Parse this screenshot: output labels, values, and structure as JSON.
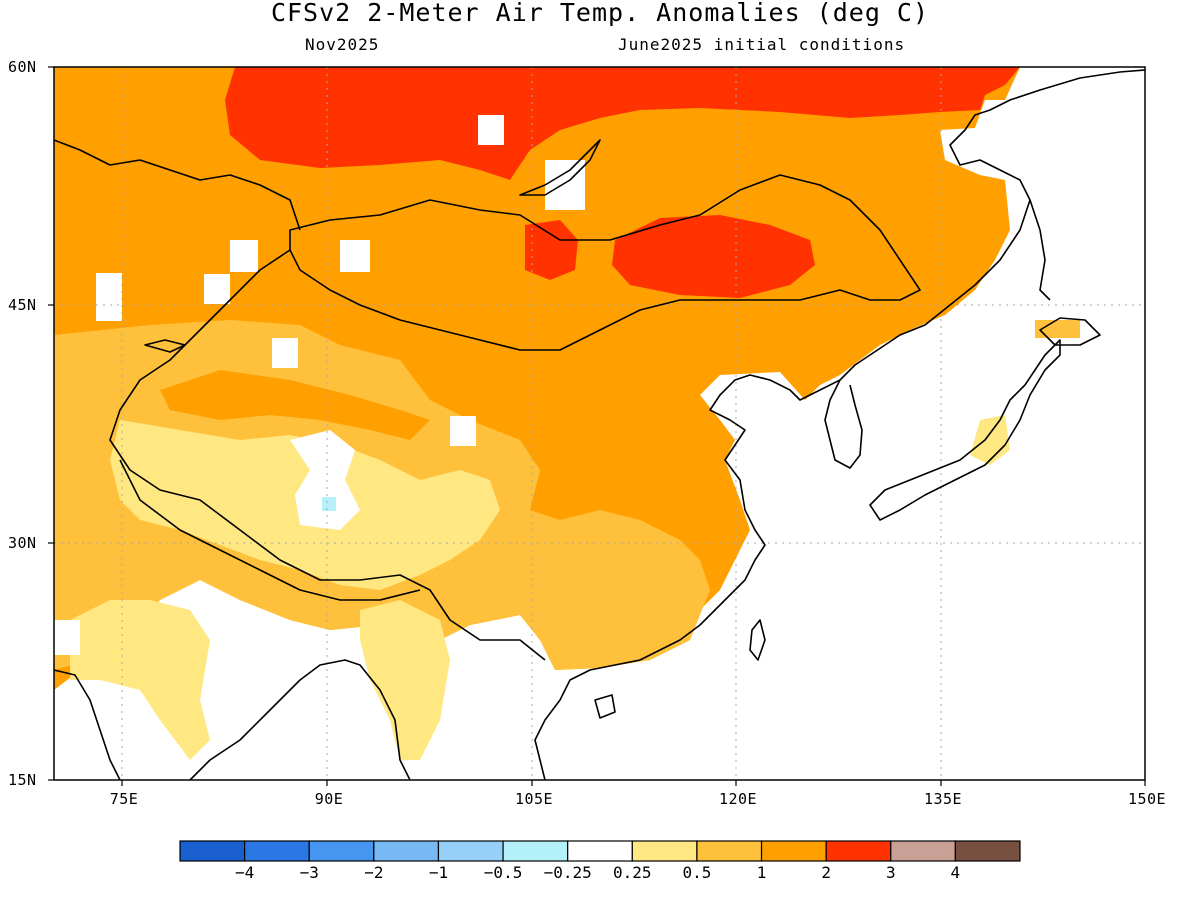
{
  "title": "CFSv2 2-Meter Air Temp. Anomalies (deg C)",
  "valid_month": "Nov2025",
  "init_text": "June2025 initial conditions",
  "lat_labels": [
    "60N",
    "45N",
    "30N",
    "15N"
  ],
  "lon_labels": [
    "75E",
    "90E",
    "105E",
    "120E",
    "135E",
    "150E"
  ],
  "colorbar": {
    "colors": [
      "#1a5fd0",
      "#2b78e4",
      "#4695f0",
      "#77b8f5",
      "#96d0f8",
      "#b4f0fa",
      "#ffffff",
      "#ffe882",
      "#ffc03c",
      "#ffa000",
      "#ff3200",
      "#c8a096",
      "#785040"
    ],
    "labels": [
      "-4",
      "-3",
      "-2",
      "-1",
      "-0.5",
      "-0.25",
      "0.25",
      "0.5",
      "1",
      "2",
      "3",
      "4"
    ]
  },
  "chart_data": {
    "type": "heatmap",
    "title": "CFSv2 2-Meter Air Temp. Anomalies (deg C)",
    "lon_range": [
      70,
      150
    ],
    "lat_range": [
      15,
      60
    ],
    "lon_ticks": [
      75,
      90,
      105,
      120,
      135,
      150
    ],
    "lat_ticks": [
      15,
      30,
      45,
      60
    ],
    "grid": "dotted",
    "levels": [
      -4,
      -3,
      -2,
      -1,
      -0.5,
      -0.25,
      0.25,
      0.5,
      1,
      2,
      3,
      4
    ],
    "regions": [
      {
        "area": "Central/East Siberia (north of 52N, 84E-140E)",
        "anomaly_range": "2 to 3"
      },
      {
        "area": "Mongolia / Northern China (48N, 112E-119E)",
        "anomaly_range": "2 to 3"
      },
      {
        "area": "Kazakhstan, Mongolia, Northern & Central China",
        "anomaly_range": "1 to 2"
      },
      {
        "area": "Tibetan Plateau / South China",
        "anomaly_range": "0.5 to 1"
      },
      {
        "area": "Central Tibetan Plateau, Northern India, Myanmar",
        "anomaly_range": "0.25 to 0.5"
      },
      {
        "area": "Central Tibet small spot (32N, 90E)",
        "anomaly_range": "-0.5 to -0.25"
      },
      {
        "area": "India, Bay of Bengal, Southeast Asia, Korea, Japan, oceans",
        "anomaly_range": "-0.25 to 0.25"
      }
    ]
  }
}
